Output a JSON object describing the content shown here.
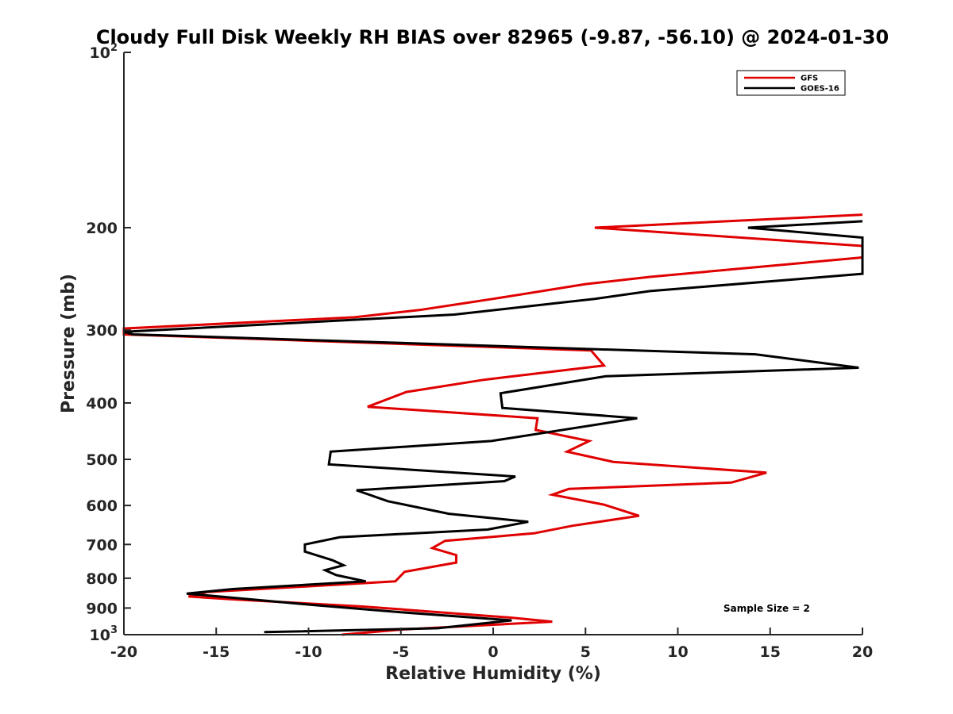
{
  "chart_data": {
    "type": "line",
    "title": "Cloudy Full Disk Weekly RH BIAS over 82965 (-9.87, -56.10) @ 2024-01-30",
    "xlabel": "Relative Humidity (%)",
    "ylabel": "Pressure (mb)",
    "xlim": [
      -20,
      20
    ],
    "ylim": [
      100,
      1000
    ],
    "y_scale": "log",
    "y_reversed": true,
    "grid": false,
    "x_ticks": [
      -20,
      -15,
      -10,
      -5,
      0,
      5,
      10,
      15,
      20
    ],
    "x_tick_labels": [
      "-20",
      "-15",
      "-10",
      "-5",
      "0",
      "5",
      "10",
      "15",
      "20"
    ],
    "y_ticks": [
      {
        "value": 100,
        "base": "10",
        "exp": "2"
      },
      {
        "value": 200,
        "label": "200"
      },
      {
        "value": 300,
        "label": "300"
      },
      {
        "value": 400,
        "label": "400"
      },
      {
        "value": 500,
        "label": "500"
      },
      {
        "value": 600,
        "label": "600"
      },
      {
        "value": 700,
        "label": "700"
      },
      {
        "value": 800,
        "label": "800"
      },
      {
        "value": 900,
        "label": "900"
      },
      {
        "value": 1000,
        "base": "10",
        "exp": "3"
      }
    ],
    "legend_position": "top-right",
    "annotation": "Sample Size = 2",
    "series": [
      {
        "name": "GFS",
        "color": "#e00000",
        "points": [
          [
            20,
            190
          ],
          [
            5.5,
            200
          ],
          [
            20,
            215
          ],
          [
            20,
            225
          ],
          [
            8.5,
            243
          ],
          [
            5,
            250
          ],
          [
            0,
            265
          ],
          [
            -4,
            277
          ],
          [
            -7.5,
            285
          ],
          [
            -20,
            298
          ],
          [
            -20,
            305
          ],
          [
            5.3,
            325
          ],
          [
            6,
            345
          ],
          [
            -0.5,
            365
          ],
          [
            -4.7,
            383
          ],
          [
            -6.8,
            406
          ],
          [
            2.4,
            425
          ],
          [
            2.3,
            445
          ],
          [
            5.2,
            465
          ],
          [
            4,
            485
          ],
          [
            6.5,
            505
          ],
          [
            14.8,
            527
          ],
          [
            12.9,
            548
          ],
          [
            4.1,
            562
          ],
          [
            3.2,
            575
          ],
          [
            6,
            598
          ],
          [
            7.9,
            625
          ],
          [
            4.3,
            650
          ],
          [
            2.2,
            670
          ],
          [
            -2.6,
            690
          ],
          [
            -3.3,
            710
          ],
          [
            -2,
            730
          ],
          [
            -2,
            752
          ],
          [
            -4.8,
            780
          ],
          [
            -5.3,
            810
          ],
          [
            -15.5,
            845
          ],
          [
            -16.5,
            860
          ],
          [
            -14,
            870
          ],
          [
            -7,
            895
          ],
          [
            1,
            935
          ],
          [
            3.2,
            950
          ],
          [
            -5,
            980
          ],
          [
            -8.2,
            1000
          ]
        ]
      },
      {
        "name": "GOES-16",
        "color": "#000000",
        "points": [
          [
            20,
            195
          ],
          [
            13.8,
            200
          ],
          [
            20,
            208
          ],
          [
            20,
            240
          ],
          [
            16.6,
            245
          ],
          [
            8.5,
            257
          ],
          [
            5.5,
            265
          ],
          [
            -2.1,
            282
          ],
          [
            -20,
            302
          ],
          [
            -19.5,
            305
          ],
          [
            14.2,
            330
          ],
          [
            19.8,
            348
          ],
          [
            6.1,
            360
          ],
          [
            0.4,
            385
          ],
          [
            0.5,
            408
          ],
          [
            7.8,
            425
          ],
          [
            -0.1,
            465
          ],
          [
            -8.8,
            485
          ],
          [
            -8.9,
            510
          ],
          [
            1.2,
            535
          ],
          [
            0.6,
            545
          ],
          [
            -7.4,
            565
          ],
          [
            -5.7,
            590
          ],
          [
            -2.4,
            620
          ],
          [
            1.9,
            640
          ],
          [
            -0.3,
            660
          ],
          [
            -8.3,
            680
          ],
          [
            -10.2,
            700
          ],
          [
            -10.2,
            720
          ],
          [
            -8.7,
            745
          ],
          [
            -8.1,
            760
          ],
          [
            -9.1,
            775
          ],
          [
            -8.5,
            790
          ],
          [
            -6.9,
            810
          ],
          [
            -14.1,
            835
          ],
          [
            -16.6,
            850
          ],
          [
            -9.6,
            890
          ],
          [
            -5,
            915
          ],
          [
            1,
            945
          ],
          [
            -3,
            975
          ],
          [
            -12.4,
            990
          ]
        ]
      }
    ]
  }
}
